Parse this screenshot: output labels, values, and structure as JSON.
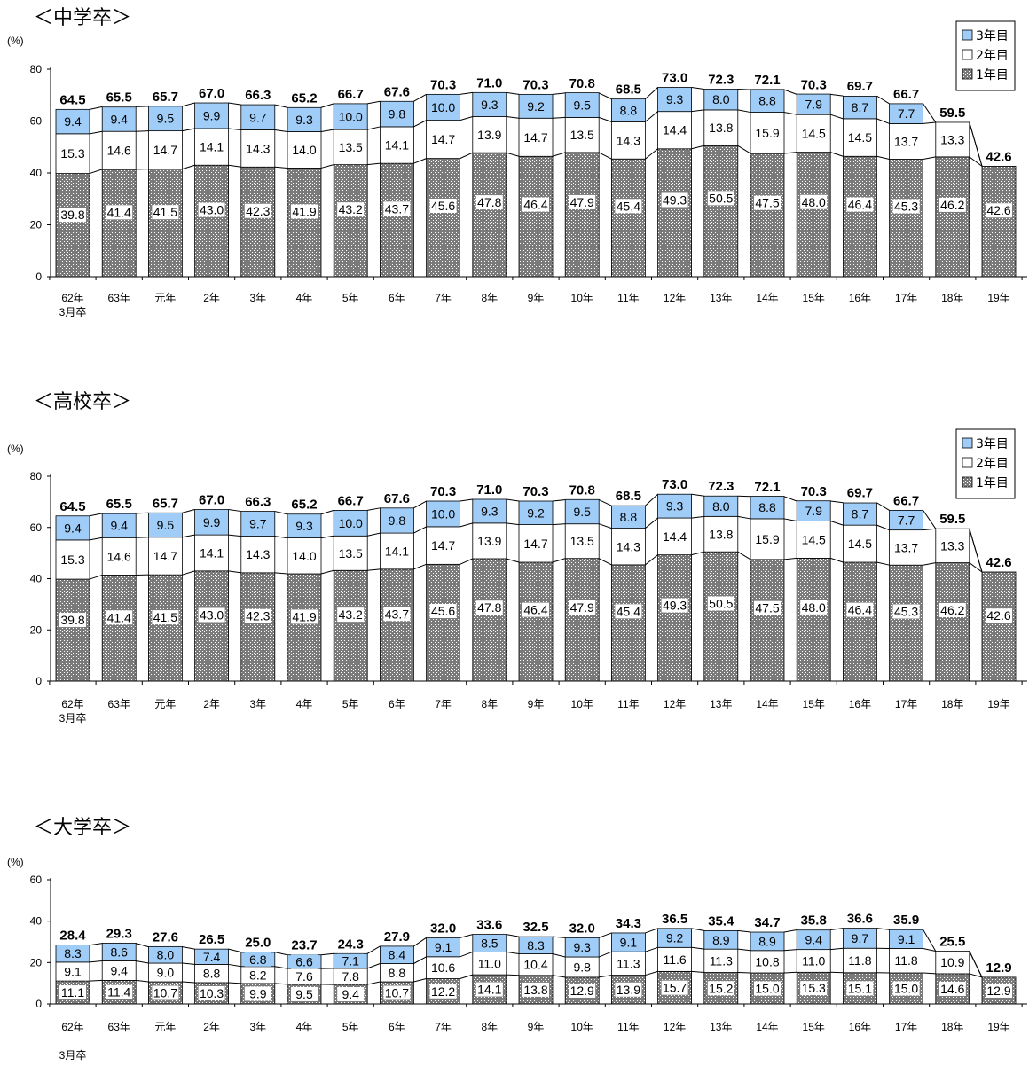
{
  "pattern_colors": {
    "year3": "#9fcdf7",
    "year2": "#ffffff",
    "year1_bg": "#7a7a7a"
  },
  "legend": [
    "3年目",
    "2年目",
    "1年目"
  ],
  "categories": [
    "62年",
    "63年",
    "元年",
    "2年",
    "3年",
    "4年",
    "5年",
    "6年",
    "7年",
    "8年",
    "9年",
    "10年",
    "11年",
    "12年",
    "13年",
    "14年",
    "15年",
    "16年",
    "17年",
    "18年",
    "19年"
  ],
  "category_sub": "3月卒",
  "chart_data": [
    {
      "type": "bar",
      "stacked": true,
      "title": "＜中学卒＞",
      "ylabel": "(%)",
      "ylim": [
        0,
        80
      ],
      "yticks": [
        0,
        20,
        40,
        60,
        80
      ],
      "categories": [
        "62年",
        "63年",
        "元年",
        "2年",
        "3年",
        "4年",
        "5年",
        "6年",
        "7年",
        "8年",
        "9年",
        "10年",
        "11年",
        "12年",
        "13年",
        "14年",
        "15年",
        "16年",
        "17年",
        "18年",
        "19年"
      ],
      "series": [
        {
          "name": "1年目",
          "values": [
            39.8,
            41.4,
            41.5,
            43.0,
            42.3,
            41.9,
            43.2,
            43.7,
            45.6,
            47.8,
            46.4,
            47.9,
            45.4,
            49.3,
            50.5,
            47.5,
            48.0,
            46.4,
            45.3,
            46.2,
            42.6
          ]
        },
        {
          "name": "2年目",
          "values": [
            15.3,
            14.6,
            14.7,
            14.1,
            14.3,
            14.0,
            13.5,
            14.1,
            14.7,
            13.9,
            14.7,
            13.5,
            14.3,
            14.4,
            13.8,
            15.9,
            14.5,
            14.5,
            13.7,
            13.3,
            null
          ]
        },
        {
          "name": "3年目",
          "values": [
            9.4,
            9.4,
            9.5,
            9.9,
            9.7,
            9.3,
            10.0,
            9.8,
            10.0,
            9.3,
            9.2,
            9.5,
            8.8,
            9.3,
            8.0,
            8.8,
            7.9,
            8.7,
            7.7,
            null,
            null
          ]
        }
      ],
      "totals": [
        64.5,
        65.5,
        65.7,
        67.0,
        66.3,
        65.2,
        66.7,
        67.6,
        70.3,
        71.0,
        70.3,
        70.8,
        68.5,
        73.0,
        72.3,
        72.1,
        70.3,
        69.7,
        66.7,
        59.5,
        42.6
      ],
      "legend_position": "top-right"
    },
    {
      "type": "bar",
      "stacked": true,
      "title": "＜高校卒＞",
      "ylabel": "(%)",
      "ylim": [
        0,
        80
      ],
      "yticks": [
        0,
        20,
        40,
        60,
        80
      ],
      "categories": [
        "62年",
        "63年",
        "元年",
        "2年",
        "3年",
        "4年",
        "5年",
        "6年",
        "7年",
        "8年",
        "9年",
        "10年",
        "11年",
        "12年",
        "13年",
        "14年",
        "15年",
        "16年",
        "17年",
        "18年",
        "19年"
      ],
      "series": [
        {
          "name": "1年目",
          "values": [
            39.8,
            41.4,
            41.5,
            43.0,
            42.3,
            41.9,
            43.2,
            43.7,
            45.6,
            47.8,
            46.4,
            47.9,
            45.4,
            49.3,
            50.5,
            47.5,
            48.0,
            46.4,
            45.3,
            46.2,
            42.6
          ]
        },
        {
          "name": "2年目",
          "values": [
            15.3,
            14.6,
            14.7,
            14.1,
            14.3,
            14.0,
            13.5,
            14.1,
            14.7,
            13.9,
            14.7,
            13.5,
            14.3,
            14.4,
            13.8,
            15.9,
            14.5,
            14.5,
            13.7,
            13.3,
            null
          ]
        },
        {
          "name": "3年目",
          "values": [
            9.4,
            9.4,
            9.5,
            9.9,
            9.7,
            9.3,
            10.0,
            9.8,
            10.0,
            9.3,
            9.2,
            9.5,
            8.8,
            9.3,
            8.0,
            8.8,
            7.9,
            8.7,
            7.7,
            null,
            null
          ]
        }
      ],
      "totals": [
        64.5,
        65.5,
        65.7,
        67.0,
        66.3,
        65.2,
        66.7,
        67.6,
        70.3,
        71.0,
        70.3,
        70.8,
        68.5,
        73.0,
        72.3,
        72.1,
        70.3,
        69.7,
        66.7,
        59.5,
        42.6
      ],
      "legend_position": "top-right"
    },
    {
      "type": "bar",
      "stacked": true,
      "title": "＜大学卒＞",
      "ylabel": "(%)",
      "ylim": [
        0,
        60
      ],
      "yticks": [
        0,
        20,
        40,
        60
      ],
      "categories": [
        "62年",
        "63年",
        "元年",
        "2年",
        "3年",
        "4年",
        "5年",
        "6年",
        "7年",
        "8年",
        "9年",
        "10年",
        "11年",
        "12年",
        "13年",
        "14年",
        "15年",
        "16年",
        "17年",
        "18年",
        "19年"
      ],
      "series": [
        {
          "name": "1年目",
          "values": [
            11.1,
            11.4,
            10.7,
            10.3,
            9.9,
            9.5,
            9.4,
            10.7,
            12.2,
            14.1,
            13.8,
            12.9,
            13.9,
            15.7,
            15.2,
            15.0,
            15.3,
            15.1,
            15.0,
            14.6,
            12.9
          ]
        },
        {
          "name": "2年目",
          "values": [
            9.1,
            9.4,
            9.0,
            8.8,
            8.2,
            7.6,
            7.8,
            8.8,
            10.6,
            11.0,
            10.4,
            9.8,
            11.3,
            11.6,
            11.3,
            10.8,
            11.0,
            11.8,
            11.8,
            10.9,
            null
          ]
        },
        {
          "name": "3年目",
          "values": [
            8.3,
            8.6,
            8.0,
            7.4,
            6.8,
            6.6,
            7.1,
            8.4,
            9.1,
            8.5,
            8.3,
            9.3,
            9.1,
            9.2,
            8.9,
            8.9,
            9.4,
            9.7,
            9.1,
            null,
            null
          ]
        }
      ],
      "totals": [
        28.4,
        29.3,
        27.6,
        26.5,
        25.0,
        23.7,
        24.3,
        27.9,
        32.0,
        33.6,
        32.5,
        32.0,
        34.3,
        36.5,
        35.4,
        34.7,
        35.8,
        36.6,
        35.9,
        25.5,
        12.9
      ],
      "legend_position": "none"
    }
  ]
}
